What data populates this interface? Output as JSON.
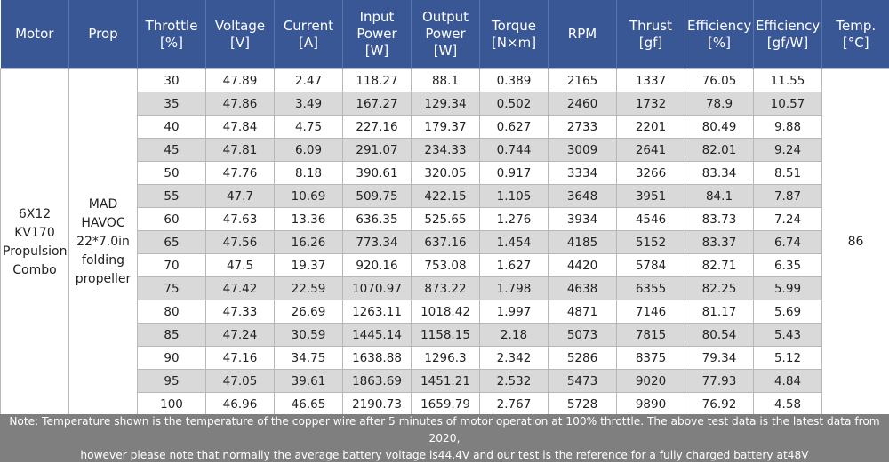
{
  "headers": [
    [
      "Motor"
    ],
    [
      "Prop"
    ],
    [
      "Throttle",
      "[%]"
    ],
    [
      "Voltage",
      "[V]"
    ],
    [
      "Current",
      "[A]"
    ],
    [
      "Input",
      "Power",
      "[W]"
    ],
    [
      "Output",
      "Power",
      "[W]"
    ],
    [
      "Torque",
      "[N×m]"
    ],
    [
      "RPM"
    ],
    [
      "Thrust",
      "[gf]"
    ],
    [
      "Efficiency",
      "[%]"
    ],
    [
      "Efficiency",
      "[gf/W]"
    ],
    [
      "Temp.",
      "[°C]"
    ]
  ],
  "motor": [
    "6X12",
    "KV170",
    "Propulsion",
    "Combo"
  ],
  "prop": [
    "MAD",
    "HAVOC",
    "22*7.0in",
    "folding",
    "propeller"
  ],
  "temp": "86",
  "rows": [
    [
      "30",
      "47.89",
      "2.47",
      "118.27",
      "88.1",
      "0.389",
      "2165",
      "1337",
      "76.05",
      "11.55"
    ],
    [
      "35",
      "47.86",
      "3.49",
      "167.27",
      "129.34",
      "0.502",
      "2460",
      "1732",
      "78.9",
      "10.57"
    ],
    [
      "40",
      "47.84",
      "4.75",
      "227.16",
      "179.37",
      "0.627",
      "2733",
      "2201",
      "80.49",
      "9.88"
    ],
    [
      "45",
      "47.81",
      "6.09",
      "291.07",
      "234.33",
      "0.744",
      "3009",
      "2641",
      "82.01",
      "9.24"
    ],
    [
      "50",
      "47.76",
      "8.18",
      "390.61",
      "320.05",
      "0.917",
      "3334",
      "3266",
      "83.34",
      "8.51"
    ],
    [
      "55",
      "47.7",
      "10.69",
      "509.75",
      "422.15",
      "1.105",
      "3648",
      "3951",
      "84.1",
      "7.87"
    ],
    [
      "60",
      "47.63",
      "13.36",
      "636.35",
      "525.65",
      "1.276",
      "3934",
      "4546",
      "83.73",
      "7.24"
    ],
    [
      "65",
      "47.56",
      "16.26",
      "773.34",
      "637.16",
      "1.454",
      "4185",
      "5152",
      "83.37",
      "6.74"
    ],
    [
      "70",
      "47.5",
      "19.37",
      "920.16",
      "753.08",
      "1.627",
      "4420",
      "5784",
      "82.71",
      "6.35"
    ],
    [
      "75",
      "47.42",
      "22.59",
      "1070.97",
      "873.22",
      "1.798",
      "4638",
      "6355",
      "82.25",
      "5.99"
    ],
    [
      "80",
      "47.33",
      "26.69",
      "1263.11",
      "1018.42",
      "1.997",
      "4871",
      "7146",
      "81.17",
      "5.69"
    ],
    [
      "85",
      "47.24",
      "30.59",
      "1445.14",
      "1158.15",
      "2.18",
      "5073",
      "7815",
      "80.54",
      "5.43"
    ],
    [
      "90",
      "47.16",
      "34.75",
      "1638.88",
      "1296.3",
      "2.342",
      "5286",
      "8375",
      "79.34",
      "5.12"
    ],
    [
      "95",
      "47.05",
      "39.61",
      "1863.69",
      "1451.21",
      "2.532",
      "5473",
      "9020",
      "77.93",
      "4.84"
    ],
    [
      "100",
      "46.96",
      "46.65",
      "2190.73",
      "1659.79",
      "2.767",
      "5728",
      "9890",
      "76.92",
      "4.58"
    ]
  ],
  "note": {
    "line1": "Note: Temperature shown is the temperature of the copper wire after 5 minutes of motor operation at 100% throttle. The above test data is the latest data from 2020,",
    "line2": "however please note that normally the average battery voltage is44.4V and our test is the reference for a fully charged battery at48V"
  },
  "colors": {
    "header_bg": "#3a5795",
    "alt_row_bg": "#d9d9d9",
    "note_bg": "#7f7f7f"
  }
}
